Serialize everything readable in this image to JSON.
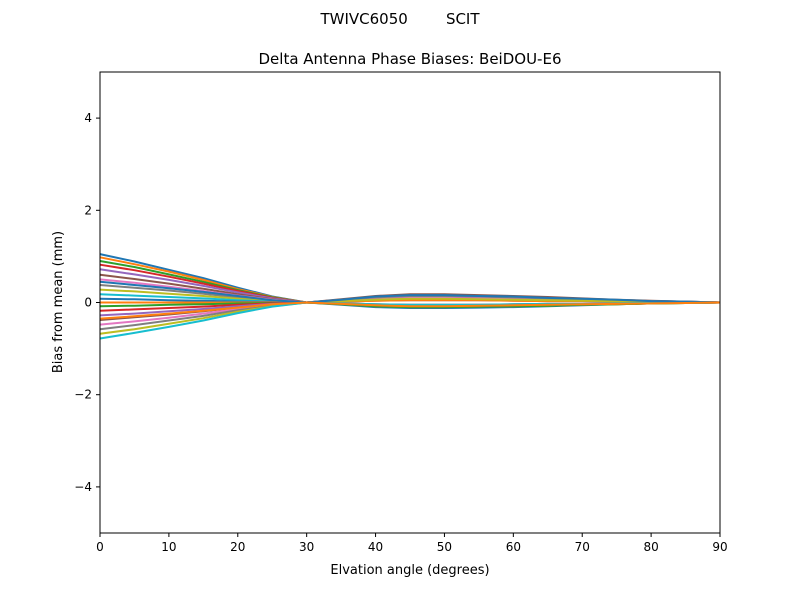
{
  "suptitle": "TWIVC6050        SCIT",
  "chart_data": {
    "type": "line",
    "title": "Delta Antenna Phase Biases: BeiDOU-E6",
    "xlabel": "Elvation angle (degrees)",
    "ylabel": "Bias from mean (mm)",
    "xlim": [
      0,
      90
    ],
    "ylim": [
      -5,
      5
    ],
    "xticks": [
      0,
      10,
      20,
      30,
      40,
      50,
      60,
      70,
      80,
      90
    ],
    "yticks": [
      -4,
      -2,
      0,
      2,
      4
    ],
    "grid": false,
    "colors": [
      "#1f77b4",
      "#ff7f0e",
      "#2ca02c",
      "#d62728",
      "#9467bd",
      "#8c564b",
      "#e377c2",
      "#7f7f7f",
      "#bcbd22",
      "#17becf"
    ],
    "x": [
      0,
      5,
      10,
      15,
      20,
      25,
      30,
      35,
      40,
      45,
      50,
      55,
      60,
      65,
      70,
      75,
      80,
      85,
      90
    ],
    "series": [
      {
        "values": [
          1.05,
          0.89,
          0.71,
          0.53,
          0.32,
          0.13,
          0,
          -0.05,
          -0.1,
          -0.12,
          -0.12,
          -0.11,
          -0.1,
          -0.08,
          -0.06,
          -0.04,
          -0.02,
          -0.01,
          0
        ]
      },
      {
        "values": [
          0.98,
          0.83,
          0.67,
          0.49,
          0.29,
          0.12,
          0,
          -0.04,
          -0.08,
          -0.1,
          -0.1,
          -0.09,
          -0.08,
          -0.07,
          -0.05,
          -0.04,
          -0.02,
          -0.01,
          0
        ]
      },
      {
        "values": [
          0.9,
          0.77,
          0.61,
          0.45,
          0.27,
          0.11,
          0,
          -0.03,
          -0.06,
          -0.08,
          -0.08,
          -0.07,
          -0.06,
          -0.05,
          -0.04,
          -0.03,
          -0.02,
          -0.01,
          0
        ]
      },
      {
        "values": [
          0.82,
          0.7,
          0.56,
          0.41,
          0.25,
          0.1,
          0,
          -0.02,
          -0.04,
          -0.05,
          -0.05,
          -0.05,
          -0.04,
          -0.03,
          -0.03,
          -0.02,
          -0.01,
          -0.01,
          0
        ]
      },
      {
        "values": [
          0.72,
          0.61,
          0.49,
          0.36,
          0.22,
          0.09,
          0,
          0.02,
          0.04,
          0.05,
          0.05,
          0.05,
          0.04,
          0.03,
          0.03,
          0.02,
          0.01,
          0.01,
          0
        ]
      },
      {
        "values": [
          0.6,
          0.51,
          0.41,
          0.3,
          0.18,
          0.07,
          0,
          0.03,
          0.06,
          0.08,
          0.08,
          0.07,
          0.06,
          0.05,
          0.04,
          0.03,
          0.02,
          0.01,
          0
        ]
      },
      {
        "values": [
          0.5,
          0.43,
          0.34,
          0.25,
          0.15,
          0.06,
          0,
          -0.02,
          -0.05,
          -0.06,
          -0.06,
          -0.05,
          -0.05,
          -0.04,
          -0.03,
          -0.02,
          -0.01,
          -0.01,
          0
        ]
      },
      {
        "values": [
          0.38,
          0.32,
          0.26,
          0.19,
          0.11,
          0.05,
          0,
          0.04,
          0.08,
          0.1,
          0.1,
          0.09,
          0.08,
          0.07,
          0.05,
          0.04,
          0.02,
          0.01,
          0
        ]
      },
      {
        "values": [
          0.28,
          0.24,
          0.19,
          0.14,
          0.08,
          0.03,
          0,
          0.05,
          0.1,
          0.12,
          0.12,
          0.11,
          0.1,
          0.08,
          0.06,
          0.04,
          0.02,
          0.01,
          0
        ]
      },
      {
        "values": [
          0.18,
          0.15,
          0.12,
          0.09,
          0.05,
          0.02,
          0,
          0.06,
          0.12,
          0.15,
          0.15,
          0.14,
          0.12,
          0.1,
          0.08,
          0.05,
          0.03,
          0.02,
          0
        ]
      },
      {
        "values": [
          0.08,
          0.07,
          0.05,
          0.04,
          0.02,
          0.01,
          0,
          0.04,
          0.08,
          0.1,
          0.1,
          0.09,
          0.08,
          0.07,
          0.05,
          0.04,
          0.02,
          0.01,
          0
        ]
      },
      {
        "values": [
          0,
          0,
          0,
          0,
          0,
          0,
          0,
          0.02,
          0.04,
          0.05,
          0.05,
          0.05,
          0.04,
          0.03,
          0.03,
          0.02,
          0.01,
          0.01,
          0
        ]
      },
      {
        "values": [
          -0.08,
          -0.07,
          -0.05,
          -0.04,
          -0.02,
          -0.01,
          0,
          -0.04,
          -0.08,
          -0.1,
          -0.1,
          -0.09,
          -0.08,
          -0.07,
          -0.05,
          -0.04,
          -0.02,
          -0.01,
          0
        ]
      },
      {
        "values": [
          -0.18,
          -0.15,
          -0.12,
          -0.09,
          -0.05,
          -0.02,
          0,
          0.05,
          0.1,
          0.12,
          0.12,
          0.11,
          0.1,
          0.08,
          0.06,
          0.04,
          0.02,
          0.01,
          0
        ]
      },
      {
        "values": [
          -0.28,
          -0.24,
          -0.19,
          -0.14,
          -0.08,
          -0.03,
          0,
          0.06,
          0.12,
          0.15,
          0.15,
          0.14,
          0.12,
          0.1,
          0.08,
          0.05,
          0.03,
          0.02,
          0
        ]
      },
      {
        "values": [
          -0.38,
          -0.32,
          -0.26,
          -0.19,
          -0.11,
          -0.05,
          0,
          0.07,
          0.14,
          0.18,
          0.18,
          0.16,
          0.14,
          0.12,
          0.09,
          0.06,
          0.04,
          0.02,
          0
        ]
      },
      {
        "values": [
          -0.48,
          -0.41,
          -0.33,
          -0.24,
          -0.14,
          -0.06,
          0,
          0.04,
          0.08,
          0.1,
          0.1,
          0.09,
          0.08,
          0.07,
          0.05,
          0.04,
          0.02,
          0.01,
          0
        ]
      },
      {
        "values": [
          -0.58,
          -0.49,
          -0.39,
          -0.29,
          -0.17,
          -0.07,
          0,
          0.06,
          0.11,
          0.14,
          0.14,
          0.13,
          0.11,
          0.09,
          0.07,
          0.05,
          0.03,
          0.01,
          0
        ]
      },
      {
        "values": [
          -0.68,
          -0.58,
          -0.46,
          -0.34,
          -0.2,
          -0.08,
          0,
          0.03,
          0.06,
          0.08,
          0.08,
          0.07,
          0.06,
          0.05,
          0.04,
          0.03,
          0.02,
          0.01,
          0
        ]
      },
      {
        "values": [
          -0.78,
          -0.66,
          -0.53,
          -0.39,
          -0.23,
          -0.09,
          0,
          -0.02,
          -0.04,
          -0.05,
          -0.05,
          -0.05,
          -0.04,
          -0.03,
          -0.03,
          -0.02,
          -0.01,
          -0.01,
          0
        ]
      },
      {
        "values": [
          0.45,
          0.38,
          0.31,
          0.23,
          0.14,
          0.05,
          0,
          0.06,
          0.13,
          0.16,
          0.16,
          0.14,
          0.13,
          0.1,
          0.08,
          0.06,
          0.03,
          0.02,
          0
        ]
      },
      {
        "values": [
          -0.35,
          -0.3,
          -0.24,
          -0.18,
          -0.11,
          -0.04,
          0,
          -0.03,
          -0.06,
          -0.08,
          -0.08,
          -0.07,
          -0.06,
          -0.05,
          -0.04,
          -0.03,
          -0.02,
          -0.01,
          0
        ]
      }
    ]
  }
}
